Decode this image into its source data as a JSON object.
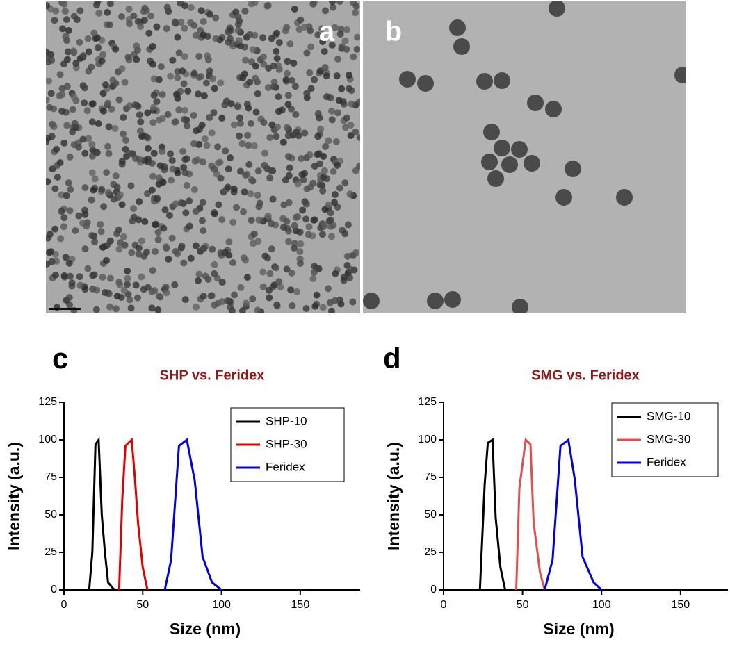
{
  "images": [
    {
      "label": "a"
    },
    {
      "label": "b"
    }
  ],
  "chart_data": [
    {
      "type": "line",
      "label": "c",
      "title": "SHP vs. Feridex",
      "xlabel": "Size (nm)",
      "ylabel": "Intensity (a.u.)",
      "xlim": [
        0,
        188
      ],
      "ylim": [
        0,
        125
      ],
      "xticks": [
        0,
        50,
        100,
        150
      ],
      "yticks": [
        0,
        25,
        50,
        75,
        100,
        125
      ],
      "legend": "upper right",
      "series": [
        {
          "name": "SHP-10",
          "color": "#000000",
          "x": [
            16,
            18,
            20,
            22,
            24,
            26,
            28,
            32
          ],
          "values": [
            0,
            25,
            97,
            100,
            50,
            25,
            5,
            0
          ]
        },
        {
          "name": "SHP-30",
          "color": "#e00000",
          "x": [
            35,
            37,
            39,
            41,
            43,
            45,
            47,
            50,
            53
          ],
          "values": [
            0,
            60,
            96,
            98,
            100,
            75,
            45,
            15,
            0
          ]
        },
        {
          "name": "Feridex",
          "color": "#0000e0",
          "x": [
            64,
            68,
            73,
            78,
            83,
            88,
            94,
            100
          ],
          "values": [
            0,
            20,
            96,
            100,
            73,
            22,
            5,
            0
          ]
        }
      ]
    },
    {
      "type": "line",
      "label": "d",
      "title": "SMG vs. Feridex",
      "xlabel": "Size (nm)",
      "ylabel": "Intensity (a.u.)",
      "xlim": [
        0,
        180
      ],
      "ylim": [
        0,
        125
      ],
      "xticks": [
        0,
        50,
        100,
        150
      ],
      "yticks": [
        0,
        25,
        50,
        75,
        100,
        125
      ],
      "legend": "upper right",
      "series": [
        {
          "name": "SMG-10",
          "color": "#000000",
          "x": [
            23,
            26,
            28,
            31,
            33,
            36,
            39
          ],
          "values": [
            0,
            70,
            98,
            100,
            48,
            15,
            0
          ]
        },
        {
          "name": "SMG-30",
          "color": "#e05050",
          "x": [
            46,
            48,
            52,
            55,
            57,
            61,
            64
          ],
          "values": [
            0,
            68,
            100,
            97,
            45,
            12,
            0
          ]
        },
        {
          "name": "Feridex",
          "color": "#0000e0",
          "x": [
            64,
            69,
            74,
            79,
            83,
            88,
            95,
            100
          ],
          "values": [
            0,
            20,
            96,
            100,
            74,
            22,
            5,
            0
          ]
        }
      ]
    }
  ]
}
